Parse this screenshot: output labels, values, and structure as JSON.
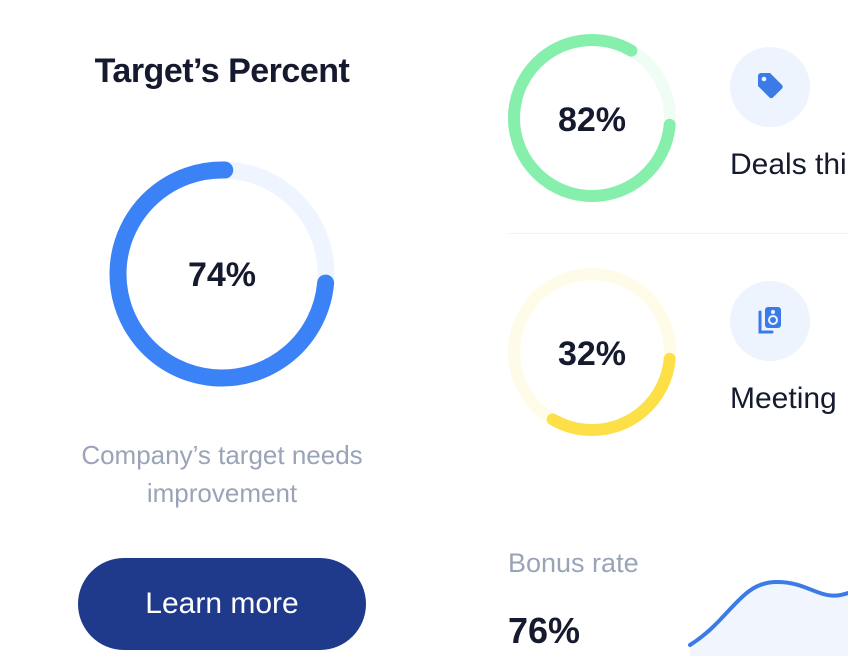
{
  "target_card": {
    "title": "Target’s Percent",
    "percent_label": "74%",
    "percent": 74,
    "description": "Company’s target needs improvement",
    "button": "Learn more",
    "color": "#3b82f6",
    "track": "#eef5fe"
  },
  "stats": [
    {
      "percent_label": "82%",
      "percent": 82,
      "label": "Deals thi",
      "icon": "tag-icon",
      "color": "#86efac",
      "track": "#f0fdf4"
    },
    {
      "percent_label": "32%",
      "percent": 32,
      "label": "Meeting",
      "icon": "speaker-icon",
      "color": "#fde047",
      "track": "#fefce8"
    }
  ],
  "bonus": {
    "label": "Bonus rate",
    "value": "76%",
    "color": "#3b7be8"
  }
}
